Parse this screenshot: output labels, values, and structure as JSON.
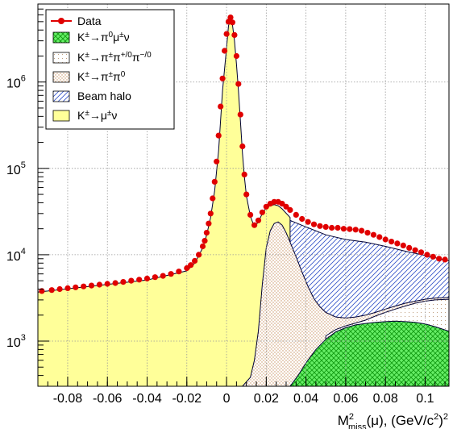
{
  "chart_data": {
    "type": "area",
    "xlabel": "M²miss(μ), (GeV/c²)²",
    "xlim": [
      -0.095,
      0.112
    ],
    "ylim": [
      300,
      8000000
    ],
    "y_scale": "log",
    "grid": true,
    "legend_position": "top-left",
    "x_ticks": [
      {
        "value": -0.08,
        "label": "-0.08"
      },
      {
        "value": -0.06,
        "label": "-0.06"
      },
      {
        "value": -0.04,
        "label": "-0.04"
      },
      {
        "value": -0.02,
        "label": "-0.02"
      },
      {
        "value": 0,
        "label": "0"
      },
      {
        "value": 0.02,
        "label": "0.02"
      },
      {
        "value": 0.04,
        "label": "0.04"
      },
      {
        "value": 0.06,
        "label": "0.06"
      },
      {
        "value": 0.08,
        "label": "0.08"
      },
      {
        "value": 0.1,
        "label": "0.1"
      }
    ],
    "y_ticks": [
      {
        "value": 1000,
        "base": "10",
        "exp": "3"
      },
      {
        "value": 10000,
        "base": "10",
        "exp": "4"
      },
      {
        "value": 100000,
        "base": "10",
        "exp": "5"
      },
      {
        "value": 1000000,
        "base": "10",
        "exp": "6"
      }
    ],
    "legend": [
      {
        "key": "data",
        "label": "Data"
      },
      {
        "key": "k3",
        "label": "K±→π⁰μ±ν"
      },
      {
        "key": "k3pi",
        "label": "K±→π±π+/0π−/0"
      },
      {
        "key": "k2pi",
        "label": "K±→π±π⁰"
      },
      {
        "key": "halo",
        "label": "Beam halo"
      },
      {
        "key": "kmu2",
        "label": "K±→μ±ν"
      }
    ],
    "stack_tops": {
      "kmu3": [
        [
          0.032,
          300
        ],
        [
          0.036,
          400
        ],
        [
          0.04,
          560
        ],
        [
          0.045,
          800
        ],
        [
          0.05,
          1050
        ],
        [
          0.055,
          1280
        ],
        [
          0.06,
          1430
        ],
        [
          0.065,
          1540
        ],
        [
          0.07,
          1600
        ],
        [
          0.075,
          1650
        ],
        [
          0.08,
          1680
        ],
        [
          0.085,
          1700
        ],
        [
          0.09,
          1680
        ],
        [
          0.095,
          1650
        ],
        [
          0.1,
          1580
        ],
        [
          0.105,
          1470
        ],
        [
          0.112,
          1300
        ]
      ],
      "k3pi": [
        [
          0.05,
          1150
        ],
        [
          0.055,
          1360
        ],
        [
          0.06,
          1500
        ],
        [
          0.065,
          1620
        ],
        [
          0.07,
          1750
        ],
        [
          0.075,
          1950
        ],
        [
          0.08,
          2150
        ],
        [
          0.085,
          2350
        ],
        [
          0.09,
          2550
        ],
        [
          0.095,
          2750
        ],
        [
          0.1,
          2900
        ],
        [
          0.105,
          3000
        ],
        [
          0.112,
          3050
        ]
      ],
      "k2pi": [
        [
          0.008,
          300
        ],
        [
          0.012,
          380
        ],
        [
          0.014,
          600
        ],
        [
          0.016,
          1300
        ],
        [
          0.018,
          4500
        ],
        [
          0.02,
          12000
        ],
        [
          0.022,
          19000
        ],
        [
          0.024,
          23000
        ],
        [
          0.026,
          24000
        ],
        [
          0.028,
          22000
        ],
        [
          0.03,
          18000
        ],
        [
          0.032,
          14000
        ],
        [
          0.035,
          9500
        ],
        [
          0.038,
          6300
        ],
        [
          0.041,
          4300
        ],
        [
          0.044,
          3100
        ],
        [
          0.047,
          2500
        ],
        [
          0.05,
          2150
        ],
        [
          0.055,
          1900
        ],
        [
          0.06,
          1850
        ],
        [
          0.065,
          1900
        ],
        [
          0.07,
          2000
        ],
        [
          0.075,
          2150
        ],
        [
          0.08,
          2350
        ],
        [
          0.085,
          2550
        ],
        [
          0.09,
          2750
        ],
        [
          0.095,
          2900
        ],
        [
          0.1,
          3050
        ],
        [
          0.105,
          3150
        ],
        [
          0.112,
          3200
        ]
      ],
      "halo": [
        [
          -0.095,
          3700
        ],
        [
          -0.08,
          4000
        ],
        [
          -0.06,
          4500
        ],
        [
          -0.04,
          5100
        ],
        [
          -0.02,
          5700
        ],
        [
          -0.01,
          6000
        ],
        [
          0,
          6500
        ],
        [
          0.005,
          7200
        ],
        [
          0.01,
          8500
        ],
        [
          0.015,
          11000
        ],
        [
          0.018,
          14000
        ],
        [
          0.02,
          17000
        ],
        [
          0.022,
          21000
        ],
        [
          0.024,
          25000
        ],
        [
          0.026,
          27000
        ],
        [
          0.028,
          26500
        ],
        [
          0.032,
          25000
        ],
        [
          0.04,
          21000
        ],
        [
          0.05,
          17000
        ],
        [
          0.06,
          15000
        ],
        [
          0.07,
          14000
        ],
        [
          0.08,
          12500
        ],
        [
          0.09,
          11000
        ],
        [
          0.1,
          9800
        ],
        [
          0.112,
          8500
        ]
      ],
      "kmu2": [
        [
          -0.095,
          3700
        ],
        [
          -0.04,
          5100
        ],
        [
          -0.02,
          6500
        ],
        [
          -0.016,
          8000
        ],
        [
          -0.012,
          12000
        ],
        [
          -0.01,
          17000
        ],
        [
          -0.008,
          27000
        ],
        [
          -0.006,
          55000
        ],
        [
          -0.004,
          160000
        ],
        [
          -0.002,
          800000
        ],
        [
          0,
          2500000
        ],
        [
          0.001,
          4500000
        ],
        [
          0.002,
          5200000
        ],
        [
          0.003,
          4600000
        ],
        [
          0.004,
          3000000
        ],
        [
          0.005,
          1600000
        ],
        [
          0.006,
          800000
        ],
        [
          0.007,
          350000
        ],
        [
          0.008,
          150000
        ],
        [
          0.009,
          80000
        ],
        [
          0.01,
          48000
        ],
        [
          0.012,
          28000
        ],
        [
          0.014,
          21000
        ],
        [
          0.016,
          24000
        ],
        [
          0.018,
          30000
        ],
        [
          0.02,
          35000
        ],
        [
          0.022,
          37000
        ],
        [
          0.024,
          38000
        ],
        [
          0.026,
          37000
        ],
        [
          0.028,
          34000
        ],
        [
          0.032,
          27000
        ]
      ]
    },
    "series": [
      {
        "name": "Data",
        "x": [
          -0.093,
          -0.088,
          -0.084,
          -0.08,
          -0.076,
          -0.072,
          -0.068,
          -0.064,
          -0.06,
          -0.056,
          -0.052,
          -0.048,
          -0.044,
          -0.04,
          -0.036,
          -0.032,
          -0.028,
          -0.024,
          -0.02,
          -0.018,
          -0.016,
          -0.014,
          -0.012,
          -0.011,
          -0.01,
          -0.009,
          -0.008,
          -0.007,
          -0.006,
          -0.005,
          -0.004,
          -0.003,
          -0.002,
          -0.001,
          0,
          0.001,
          0.002,
          0.003,
          0.004,
          0.005,
          0.006,
          0.007,
          0.008,
          0.009,
          0.01,
          0.012,
          0.014,
          0.016,
          0.018,
          0.02,
          0.022,
          0.024,
          0.026,
          0.028,
          0.03,
          0.032,
          0.035,
          0.038,
          0.041,
          0.044,
          0.047,
          0.05,
          0.053,
          0.056,
          0.059,
          0.062,
          0.065,
          0.068,
          0.071,
          0.074,
          0.077,
          0.08,
          0.083,
          0.086,
          0.089,
          0.092,
          0.095,
          0.098,
          0.101,
          0.104,
          0.107,
          0.11
        ],
        "y": [
          3800,
          3900,
          4000,
          4100,
          4200,
          4300,
          4400,
          4500,
          4600,
          4700,
          4850,
          5000,
          5150,
          5300,
          5500,
          5700,
          6000,
          6400,
          7000,
          7600,
          8500,
          10000,
          12500,
          14500,
          18000,
          23000,
          30000,
          45000,
          70000,
          120000,
          240000,
          520000,
          1100000,
          2300000,
          3600000,
          5000000,
          5600000,
          4900000,
          3500000,
          2000000,
          950000,
          420000,
          180000,
          85000,
          50000,
          29000,
          22000,
          25000,
          31000,
          36000,
          39000,
          41000,
          41000,
          39000,
          36000,
          33000,
          29000,
          26000,
          24000,
          22500,
          21500,
          21000,
          20500,
          20500,
          20000,
          19800,
          19500,
          19000,
          18000,
          17000,
          16000,
          15000,
          14200,
          13500,
          12800,
          12000,
          11300,
          10700,
          10000,
          9500,
          9000,
          8800
        ]
      }
    ]
  }
}
